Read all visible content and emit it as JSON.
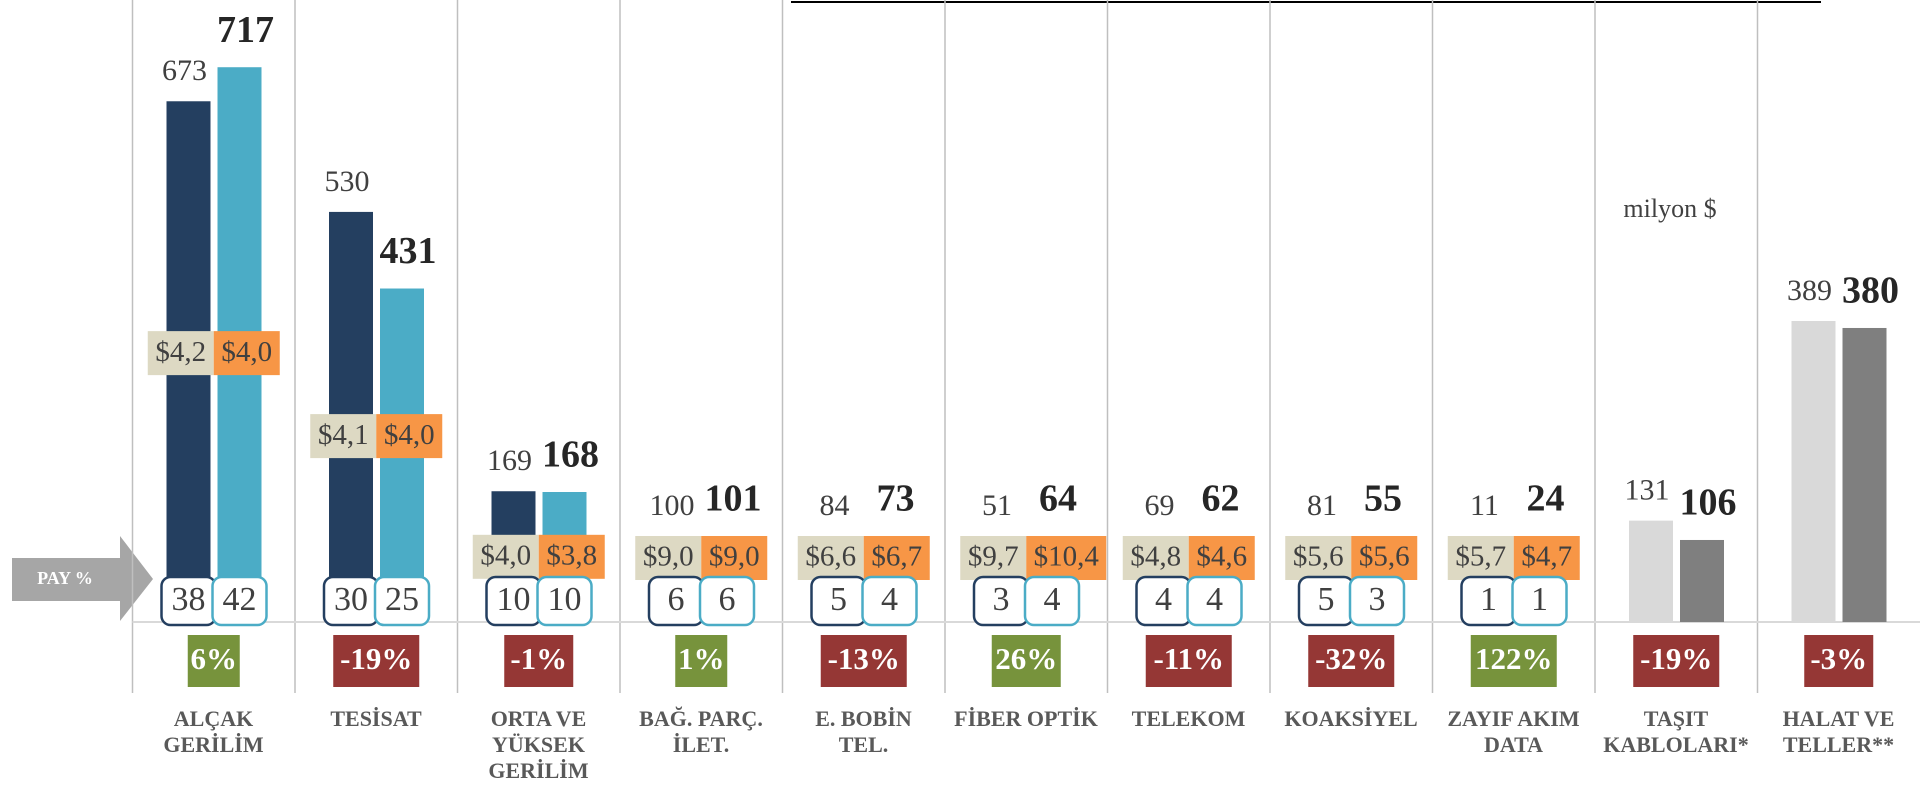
{
  "chart_data": {
    "type": "bar",
    "categories": [
      "ALÇAK\nGERİLİM",
      "TESİSAT",
      "ORTA VE\nYÜKSEK\nGERİLİM",
      "BAĞ. PARÇ.\nİLET.",
      "E. BOBİN\nTEL.",
      "FİBER OPTİK",
      "TELEKOM",
      "KOAKSİYEL",
      "ZAYIF AKIM\nDATA",
      "TAŞIT\nKABLOLARI*",
      "HALAT VE\nTELLER**"
    ],
    "ylim": [
      0,
      800
    ],
    "series": [
      {
        "colors": [
          "#243f60",
          "#243f60",
          "#243f60",
          "#243f60",
          "#243f60",
          "#243f60",
          "#243f60",
          "#243f60",
          "#243f60",
          "#d9d9d9",
          "#d9d9d9"
        ],
        "values": [
          673,
          530,
          169,
          100,
          84,
          51,
          69,
          81,
          11,
          131,
          389
        ],
        "price_values": [
          4.2,
          4.1,
          4.0,
          9.0,
          6.6,
          9.7,
          4.8,
          5.6,
          5.7,
          null,
          null
        ],
        "price_labels": [
          "$4,2",
          "$4,1",
          "$4,0",
          "$9,0",
          "$6,6",
          "$9,7",
          "$4,8",
          "$5,6",
          "$5,7",
          null,
          null
        ],
        "price_color": "#ddd9c3",
        "shares": [
          38,
          30,
          10,
          6,
          5,
          3,
          4,
          5,
          1,
          null,
          null
        ]
      },
      {
        "colors": [
          "#4bacc6",
          "#4bacc6",
          "#4bacc6",
          "#4bacc6",
          "#4bacc6",
          "#4bacc6",
          "#4bacc6",
          "#4bacc6",
          "#4bacc6",
          "#7f7f7f",
          "#7f7f7f"
        ],
        "values": [
          717,
          431,
          168,
          101,
          73,
          64,
          62,
          55,
          24,
          106,
          380
        ],
        "price_values": [
          4.0,
          4.0,
          3.8,
          9.0,
          6.7,
          10.4,
          4.6,
          5.6,
          4.7,
          null,
          null
        ],
        "price_labels": [
          "$4,0",
          "$4,0",
          "$3,8",
          "$9,0",
          "$6,7",
          "$10,4",
          "$4,6",
          "$5,6",
          "$4,7",
          null,
          null
        ],
        "price_color": "#f79646",
        "shares": [
          42,
          25,
          10,
          6,
          4,
          4,
          4,
          3,
          1,
          null,
          null
        ]
      }
    ],
    "change": {
      "values": [
        6,
        -19,
        -1,
        1,
        -13,
        26,
        -11,
        -32,
        122,
        -19,
        -3
      ],
      "value_labels": [
        "6%",
        "-19%",
        "-1%",
        "1%",
        "-13%",
        "26%",
        "-11%",
        "-32%",
        "122%",
        "-19%",
        "-3%"
      ],
      "positive_color": "#77933c",
      "negative_color": "#953735"
    },
    "share_label": "PAY %",
    "unit_label": "milyon $"
  }
}
